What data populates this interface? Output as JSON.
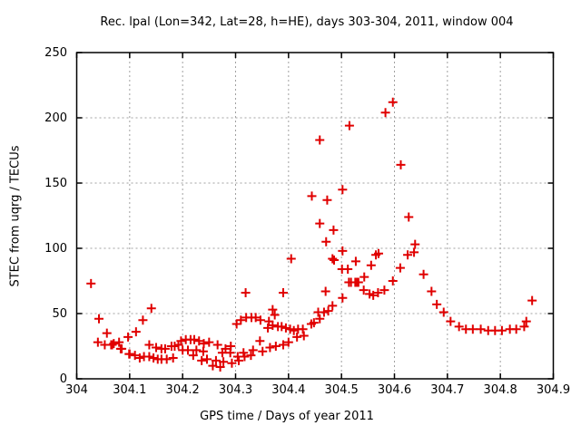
{
  "chart_data": {
    "type": "scatter",
    "title": "Rec. lpal (Lon=342, Lat=28, h=HE), days 303-304, 2011, window 004",
    "xlabel": "GPS time / Days of year 2011",
    "ylabel": "STEC from uqrg / TECUs",
    "xlim": [
      304,
      304.9
    ],
    "ylim": [
      0,
      250
    ],
    "x_ticks": [
      "304",
      "304.1",
      "304.2",
      "304.3",
      "304.4",
      "304.5",
      "304.6",
      "304.7",
      "304.8",
      "304.9"
    ],
    "y_ticks": [
      "0",
      "50",
      "100",
      "150",
      "200",
      "250"
    ],
    "grid": "dotted gray at every labeled tick",
    "legend": "none",
    "marker": {
      "shape": "plus",
      "color": "#e00000",
      "size": 10
    },
    "series": [
      {
        "name": "STEC from uqrg",
        "points": [
          [
            304.027,
            73
          ],
          [
            304.04,
            28
          ],
          [
            304.042,
            46
          ],
          [
            304.053,
            26
          ],
          [
            304.057,
            35
          ],
          [
            304.065,
            26
          ],
          [
            304.067,
            26
          ],
          [
            304.07,
            27
          ],
          [
            304.08,
            28
          ],
          [
            304.083,
            23
          ],
          [
            304.085,
            23
          ],
          [
            304.097,
            32
          ],
          [
            304.099,
            19
          ],
          [
            304.1,
            19
          ],
          [
            304.11,
            18
          ],
          [
            304.112,
            36
          ],
          [
            304.119,
            16
          ],
          [
            304.125,
            45
          ],
          [
            304.127,
            17
          ],
          [
            304.137,
            17
          ],
          [
            304.137,
            26
          ],
          [
            304.141,
            54
          ],
          [
            304.145,
            16
          ],
          [
            304.15,
            24
          ],
          [
            304.153,
            15
          ],
          [
            304.16,
            23
          ],
          [
            304.16,
            15
          ],
          [
            304.167,
            23
          ],
          [
            304.17,
            15
          ],
          [
            304.179,
            25
          ],
          [
            304.182,
            16
          ],
          [
            304.185,
            25
          ],
          [
            304.192,
            26
          ],
          [
            304.197,
            29
          ],
          [
            304.2,
            22
          ],
          [
            304.206,
            30
          ],
          [
            304.21,
            22
          ],
          [
            304.215,
            30
          ],
          [
            304.22,
            18
          ],
          [
            304.222,
            30
          ],
          [
            304.226,
            22
          ],
          [
            304.231,
            29
          ],
          [
            304.236,
            14
          ],
          [
            304.239,
            21
          ],
          [
            304.24,
            27
          ],
          [
            304.246,
            15
          ],
          [
            304.25,
            28
          ],
          [
            304.257,
            10
          ],
          [
            304.263,
            14
          ],
          [
            304.266,
            26
          ],
          [
            304.271,
            9
          ],
          [
            304.275,
            20
          ],
          [
            304.277,
            13
          ],
          [
            304.281,
            23
          ],
          [
            304.29,
            20
          ],
          [
            304.291,
            25
          ],
          [
            304.293,
            12
          ],
          [
            304.302,
            42
          ],
          [
            304.304,
            17
          ],
          [
            304.306,
            14
          ],
          [
            304.31,
            45
          ],
          [
            304.315,
            20
          ],
          [
            304.317,
            17
          ],
          [
            304.319,
            66
          ],
          [
            304.32,
            47
          ],
          [
            304.329,
            18
          ],
          [
            304.33,
            47
          ],
          [
            304.333,
            22
          ],
          [
            304.338,
            47
          ],
          [
            304.346,
            29
          ],
          [
            304.347,
            45
          ],
          [
            304.351,
            21
          ],
          [
            304.361,
            39
          ],
          [
            304.363,
            44
          ],
          [
            304.365,
            24
          ],
          [
            304.37,
            41
          ],
          [
            304.37,
            53
          ],
          [
            304.374,
            49
          ],
          [
            304.376,
            25
          ],
          [
            304.38,
            40
          ],
          [
            304.387,
            40
          ],
          [
            304.39,
            66
          ],
          [
            304.39,
            26
          ],
          [
            304.395,
            39
          ],
          [
            304.4,
            28
          ],
          [
            304.403,
            38
          ],
          [
            304.405,
            92
          ],
          [
            304.41,
            37
          ],
          [
            304.416,
            32
          ],
          [
            304.418,
            38
          ],
          [
            304.427,
            38
          ],
          [
            304.429,
            33
          ],
          [
            304.443,
            42
          ],
          [
            304.448,
            43
          ],
          [
            304.444,
            140
          ],
          [
            304.456,
            51
          ],
          [
            304.459,
            183
          ],
          [
            304.459,
            119
          ],
          [
            304.459,
            46
          ],
          [
            304.467,
            51
          ],
          [
            304.47,
            67
          ],
          [
            304.473,
            137
          ],
          [
            304.471,
            105
          ],
          [
            304.475,
            52
          ],
          [
            304.483,
            92
          ],
          [
            304.483,
            56
          ],
          [
            304.485,
            114
          ],
          [
            304.486,
            91
          ],
          [
            304.501,
            84
          ],
          [
            304.502,
            145
          ],
          [
            304.502,
            98
          ],
          [
            304.502,
            62
          ],
          [
            304.512,
            84
          ],
          [
            304.514,
            74
          ],
          [
            304.515,
            194
          ],
          [
            304.518,
            74
          ],
          [
            304.526,
            74
          ],
          [
            304.527,
            90
          ],
          [
            304.529,
            74
          ],
          [
            304.532,
            74
          ],
          [
            304.542,
            68
          ],
          [
            304.543,
            78
          ],
          [
            304.553,
            65
          ],
          [
            304.556,
            87
          ],
          [
            304.56,
            64
          ],
          [
            304.565,
            95
          ],
          [
            304.569,
            66
          ],
          [
            304.57,
            96
          ],
          [
            304.581,
            68
          ],
          [
            304.583,
            204
          ],
          [
            304.597,
            75
          ],
          [
            304.597,
            212
          ],
          [
            304.611,
            85
          ],
          [
            304.612,
            164
          ],
          [
            304.625,
            95
          ],
          [
            304.627,
            124
          ],
          [
            304.637,
            97
          ],
          [
            304.639,
            103
          ],
          [
            304.655,
            80
          ],
          [
            304.67,
            67
          ],
          [
            304.68,
            57
          ],
          [
            304.693,
            51
          ],
          [
            304.706,
            44
          ],
          [
            304.722,
            40
          ],
          [
            304.735,
            38
          ],
          [
            304.748,
            38
          ],
          [
            304.763,
            38
          ],
          [
            304.777,
            37
          ],
          [
            304.79,
            37
          ],
          [
            304.803,
            37
          ],
          [
            304.818,
            38
          ],
          [
            304.83,
            38
          ],
          [
            304.845,
            40
          ],
          [
            304.849,
            44
          ],
          [
            304.86,
            60
          ]
        ]
      }
    ]
  },
  "colors": {
    "marker": "#e00000",
    "grid": "#a0a0a0",
    "border": "#000000",
    "text": "#000000",
    "background": "#ffffff"
  }
}
